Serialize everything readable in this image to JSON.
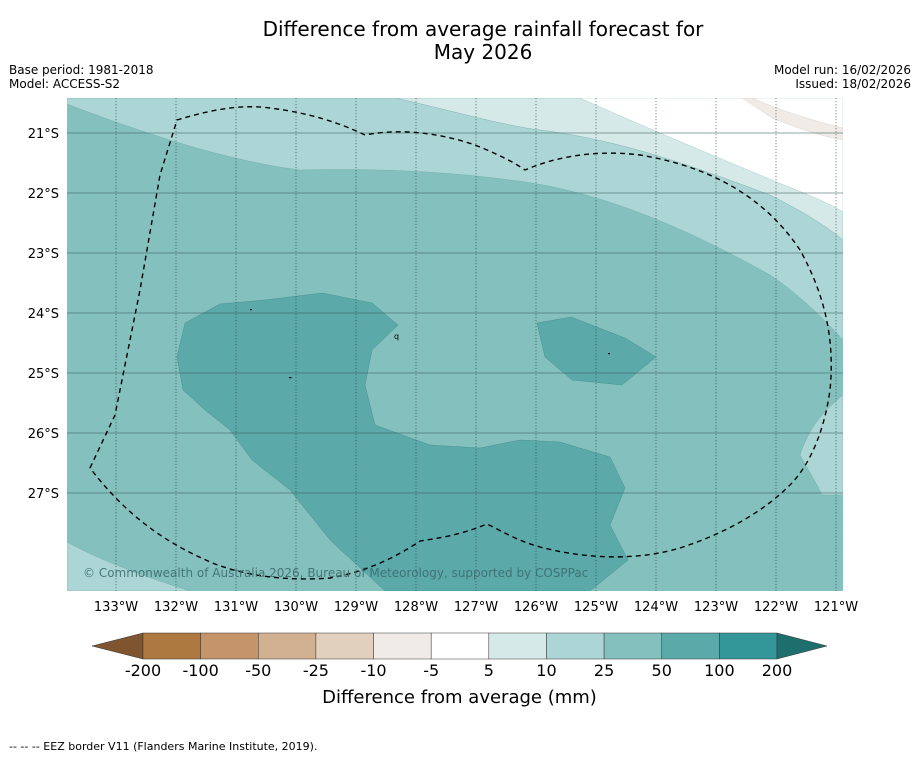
{
  "title": {
    "line1": "Difference from average rainfall forecast for",
    "line2": "May 2026"
  },
  "meta": {
    "base_period": "Base period: 1981-2018",
    "model": "Model: ACCESS-S2",
    "model_run": "Model run: 16/02/2026",
    "issued": "Issued: 18/02/2026"
  },
  "map": {
    "x_ticks": [
      "133°W",
      "132°W",
      "131°W",
      "130°W",
      "129°W",
      "128°W",
      "127°W",
      "126°W",
      "125°W",
      "124°W",
      "123°W",
      "122°W",
      "121°W"
    ],
    "y_ticks": [
      "21°S",
      "22°S",
      "23°S",
      "24°S",
      "25°S",
      "26°S",
      "27°S"
    ],
    "attribution": "© Commonwealth of Australia 2026, Bureau of Meteorology, supported by COSPPac",
    "marker": "q"
  },
  "colorbar": {
    "labels": [
      "-200",
      "-100",
      "-50",
      "-25",
      "-10",
      "-5",
      "5",
      "10",
      "25",
      "50",
      "100",
      "200"
    ],
    "colors": [
      "#ae7941",
      "#c4956a",
      "#d2b192",
      "#e2d0be",
      "#f0ebe6",
      "#ffffff",
      "#d5e9e8",
      "#acd6d5",
      "#84c0be",
      "#5ca9a9",
      "#33979a"
    ],
    "end_colors": [
      "#7f5530",
      "#1f6e6e"
    ],
    "title": "Difference from average (mm)"
  },
  "footer": "--  --  -- EEZ border V11 (Flanders Marine Institute, 2019)."
}
